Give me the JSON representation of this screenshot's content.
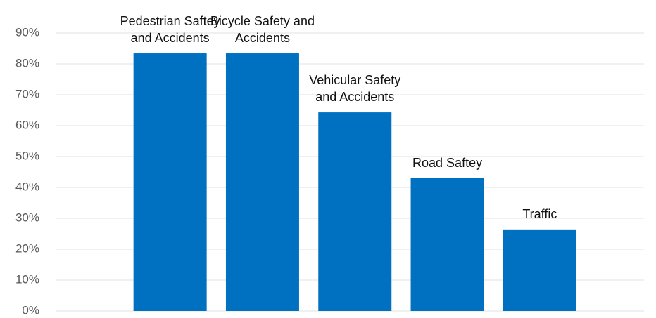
{
  "chart_data": {
    "type": "bar",
    "categories": [
      "Pedestrian Saftey and Accidents",
      "Bicycle Safety and Accidents",
      "Vehicular Safety and Accidents",
      "Road Saftey",
      "Traffic"
    ],
    "values": [
      83.4,
      83.4,
      64.3,
      43.0,
      26.4
    ],
    "color": "#0070c0",
    "ylim": [
      0,
      90
    ],
    "yticks": [
      {
        "value": 0,
        "label": "0%"
      },
      {
        "value": 10,
        "label": "10%"
      },
      {
        "value": 20,
        "label": "20%"
      },
      {
        "value": 30,
        "label": "30%"
      },
      {
        "value": 40,
        "label": "40%"
      },
      {
        "value": 50,
        "label": "50%"
      },
      {
        "value": 60,
        "label": "60%"
      },
      {
        "value": 70,
        "label": "70%"
      },
      {
        "value": 80,
        "label": "80%"
      },
      {
        "value": 90,
        "label": "90%"
      }
    ],
    "grid": true
  }
}
